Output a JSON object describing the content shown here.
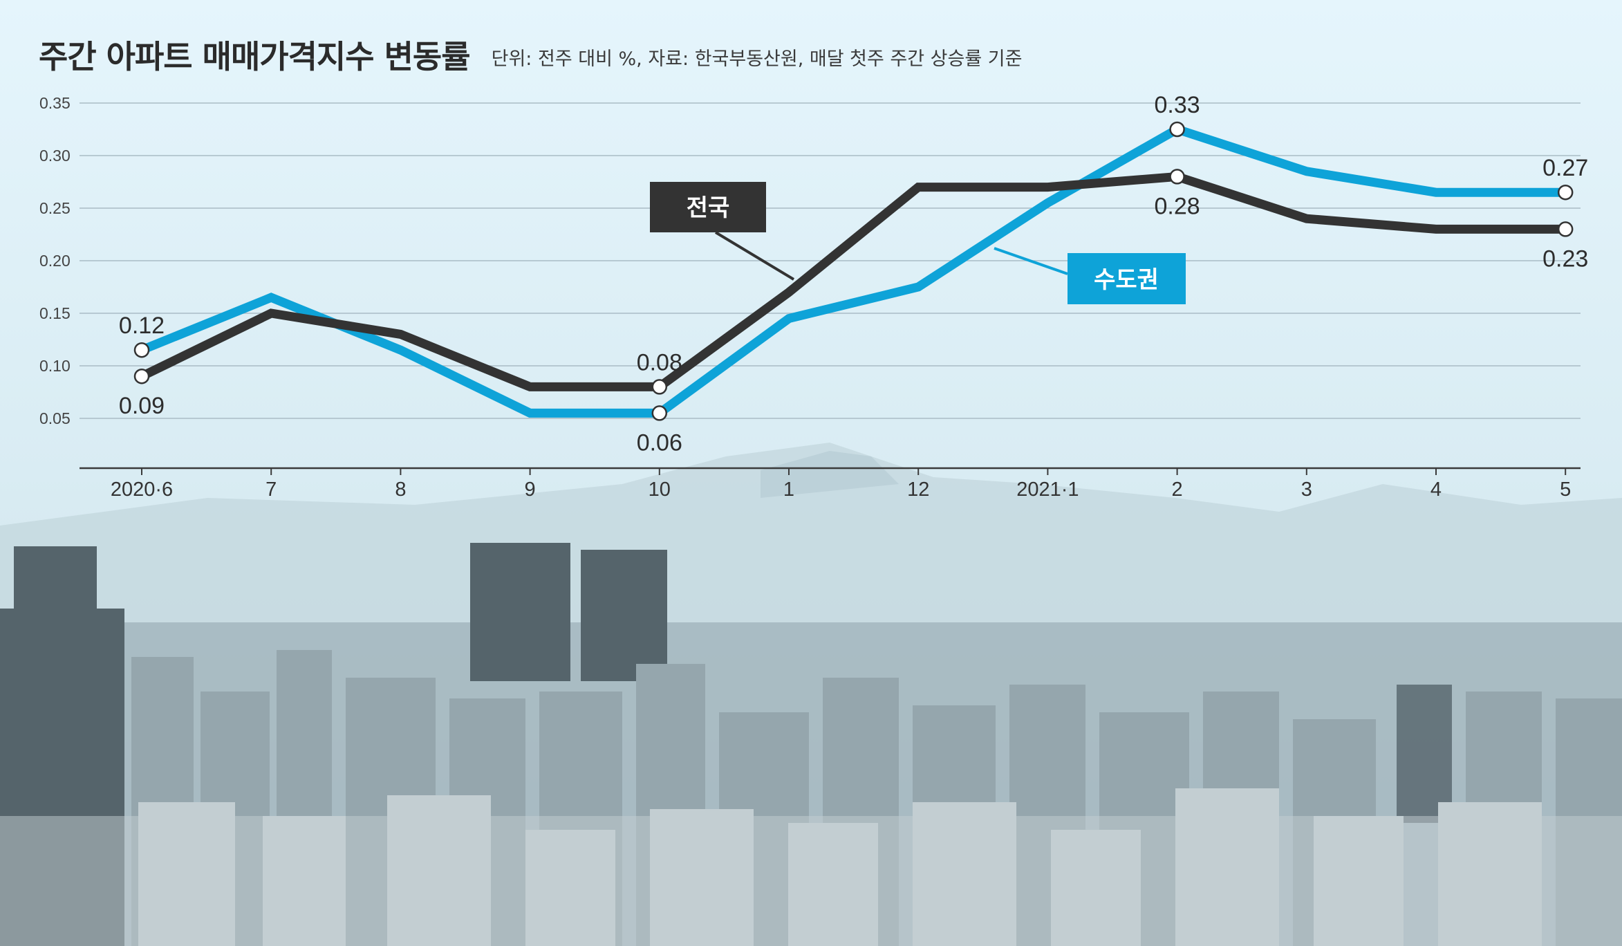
{
  "chart_data": {
    "type": "line",
    "title": "주간 아파트 매매가격지수 변동률",
    "subtitle": "단위: 전주 대비 %, 자료: 한국부동산원, 매달 첫주 주간 상승률 기준",
    "categories": [
      "2020·6",
      "7",
      "8",
      "9",
      "10",
      "1",
      "12",
      "2021·1",
      "2",
      "3",
      "4",
      "5"
    ],
    "ylim": [
      0,
      0.35
    ],
    "yticks": [
      "0.35",
      "0.30",
      "0.25",
      "0.20",
      "0.15",
      "0.10",
      "0.05"
    ],
    "grid": true,
    "series": [
      {
        "name": "전국",
        "color": "#333333",
        "values": [
          0.09,
          0.15,
          0.13,
          0.08,
          0.08,
          0.17,
          0.27,
          0.27,
          0.28,
          0.24,
          0.23,
          0.23
        ],
        "labels": [
          {
            "index": 0,
            "text": "0.09",
            "position": "below"
          },
          {
            "index": 4,
            "text": "0.08",
            "position": "above"
          },
          {
            "index": 8,
            "text": "0.28",
            "position": "below"
          },
          {
            "index": 11,
            "text": "0.23",
            "position": "below"
          }
        ],
        "marker_indices": [
          0,
          4,
          8,
          11
        ]
      },
      {
        "name": "수도권",
        "color": "#0ea3d8",
        "values": [
          0.115,
          0.165,
          0.115,
          0.055,
          0.055,
          0.145,
          0.175,
          0.255,
          0.325,
          0.285,
          0.265,
          0.265
        ],
        "labels": [
          {
            "index": 0,
            "text": "0.12",
            "position": "above"
          },
          {
            "index": 4,
            "text": "0.06",
            "position": "below"
          },
          {
            "index": 8,
            "text": "0.33",
            "position": "above"
          },
          {
            "index": 11,
            "text": "0.27",
            "position": "above"
          }
        ],
        "marker_indices": [
          0,
          4,
          8,
          11
        ]
      }
    ],
    "legend": [
      {
        "series": "전국",
        "text": "전국",
        "placement": "center-top",
        "box_color": "#333333"
      },
      {
        "series": "수도권",
        "text": "수도권",
        "placement": "right-middle",
        "box_color": "#0ea3d8"
      }
    ]
  }
}
